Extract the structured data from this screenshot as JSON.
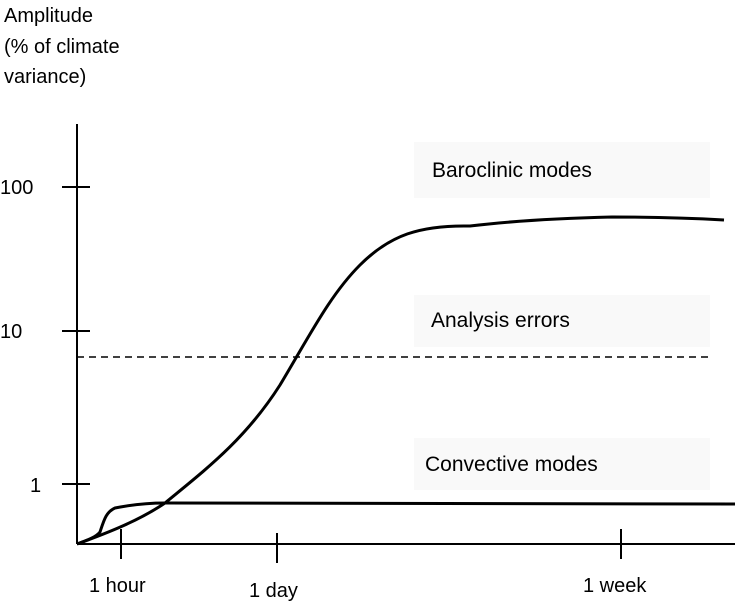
{
  "chart_data": {
    "type": "line",
    "ylabel_lines": [
      "Amplitude",
      "(% of climate",
      "variance)"
    ],
    "xlabel": "",
    "y_scale": "log",
    "x_scale": "nonlinear (time)",
    "y_ticks": [
      {
        "value": 1,
        "label": "1"
      },
      {
        "value": 10,
        "label": "10"
      },
      {
        "value": 100,
        "label": "100"
      }
    ],
    "x_ticks": [
      {
        "value_hours": 1,
        "label": "1 hour"
      },
      {
        "value_hours": 24,
        "label": "1 day"
      },
      {
        "value_hours": 168,
        "label": "1 week"
      }
    ],
    "grid": false,
    "legend": "none",
    "annotations": [
      {
        "text": "Baroclinic modes",
        "series": "baroclinic"
      },
      {
        "text": "Analysis errors",
        "series": "analysis"
      },
      {
        "text": "Convective modes",
        "series": "convective"
      }
    ],
    "series": [
      {
        "id": "baroclinic",
        "style": "solid",
        "points_hours_amplitude": [
          [
            0,
            0.42
          ],
          [
            0.5,
            0.45
          ],
          [
            1,
            0.5
          ],
          [
            2,
            0.6
          ],
          [
            3,
            0.75
          ],
          [
            6,
            1.2
          ],
          [
            12,
            2.0
          ],
          [
            20,
            3.5
          ],
          [
            30,
            7.0
          ],
          [
            40,
            15
          ],
          [
            55,
            32
          ],
          [
            70,
            45
          ],
          [
            100,
            53
          ],
          [
            150,
            57
          ],
          [
            200,
            55
          ]
        ]
      },
      {
        "id": "convective",
        "style": "solid",
        "points_hours_amplitude": [
          [
            0,
            0.42
          ],
          [
            0.2,
            0.46
          ],
          [
            0.4,
            0.55
          ],
          [
            0.5,
            0.68
          ],
          [
            1,
            0.72
          ],
          [
            2,
            0.75
          ],
          [
            5,
            0.75
          ],
          [
            200,
            0.75
          ]
        ]
      },
      {
        "id": "analysis",
        "style": "dashed",
        "points_hours_amplitude": [
          [
            0,
            6.8
          ],
          [
            200,
            6.8
          ]
        ]
      }
    ],
    "colors": {
      "lines": "#000000",
      "annotation_background": "#f9f9f9"
    }
  }
}
